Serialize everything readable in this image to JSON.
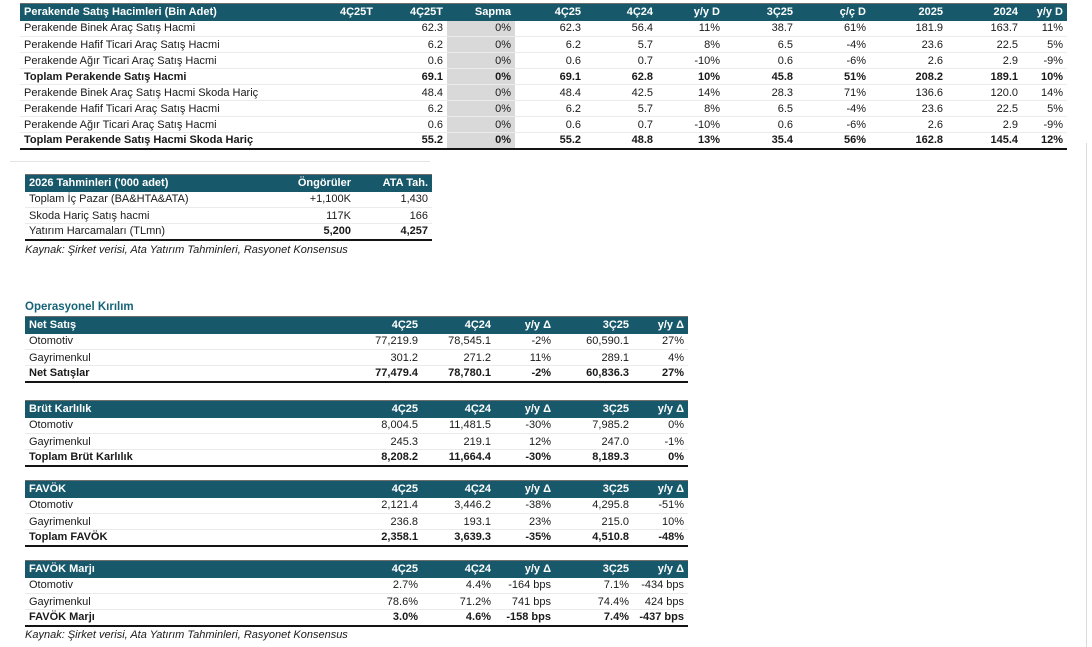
{
  "colors": {
    "header_bar": "#17596B",
    "header_text": "#FFFFFF",
    "sapma_shade": "#D9D9D9",
    "section_heading_text": "#176479",
    "total_border": "#141414"
  },
  "retail_table": {
    "title": "Perakende Satış Hacimleri (Bin Adet)",
    "columns": [
      "4Ç25T",
      "4Ç25T",
      "Sapma",
      "4Ç25",
      "4Ç24",
      "y/y D",
      "3Ç25",
      "ç/ç D",
      "2025",
      "2024",
      "y/y D"
    ],
    "rows": [
      {
        "label": "Perakende Binek Araç Satış Hacmi",
        "bold": false,
        "values": [
          "",
          "62.3",
          "0%",
          "62.3",
          "56.4",
          "11%",
          "38.7",
          "61%",
          "181.9",
          "163.7",
          "11%"
        ]
      },
      {
        "label": "Perakende Hafif Ticari Araç Satış Hacmi",
        "bold": false,
        "values": [
          "",
          "6.2",
          "0%",
          "6.2",
          "5.7",
          "8%",
          "6.5",
          "-4%",
          "23.6",
          "22.5",
          "5%"
        ]
      },
      {
        "label": "Perakende Ağır Ticari Araç Satış Hacmi",
        "bold": false,
        "values": [
          "",
          "0.6",
          "0%",
          "0.6",
          "0.7",
          "-10%",
          "0.6",
          "-6%",
          "2.6",
          "2.9",
          "-9%"
        ]
      },
      {
        "label": "Toplam Perakende Satış Hacmi",
        "bold": true,
        "values": [
          "",
          "69.1",
          "0%",
          "69.1",
          "62.8",
          "10%",
          "45.8",
          "51%",
          "208.2",
          "189.1",
          "10%"
        ]
      },
      {
        "label": "Perakende Binek Araç Satış Hacmi Skoda Hariç",
        "bold": false,
        "values": [
          "",
          "48.4",
          "0%",
          "48.4",
          "42.5",
          "14%",
          "28.3",
          "71%",
          "136.6",
          "120.0",
          "14%"
        ]
      },
      {
        "label": "Perakende Hafif Ticari Araç Satış Hacmi",
        "bold": false,
        "values": [
          "",
          "6.2",
          "0%",
          "6.2",
          "5.7",
          "8%",
          "6.5",
          "-4%",
          "23.6",
          "22.5",
          "5%"
        ]
      },
      {
        "label": "Perakende Ağır Ticari Araç Satış Hacmi",
        "bold": false,
        "values": [
          "",
          "0.6",
          "0%",
          "0.6",
          "0.7",
          "-10%",
          "0.6",
          "-6%",
          "2.6",
          "2.9",
          "-9%"
        ]
      },
      {
        "label": "Toplam Perakende Satış Hacmi Skoda Hariç",
        "bold": true,
        "values": [
          "",
          "55.2",
          "0%",
          "55.2",
          "48.8",
          "13%",
          "35.4",
          "56%",
          "162.8",
          "145.4",
          "12%"
        ]
      }
    ]
  },
  "forecast_table": {
    "title": "2026 Tahminleri ('000 adet)",
    "columns": [
      "Öngörüler",
      "ATA Tah."
    ],
    "rows": [
      {
        "label": "Toplam İç Pazar (BA&HTA&ATA)",
        "bold": false,
        "values": [
          "+1,100K",
          "1,430"
        ]
      },
      {
        "label": "Skoda Hariç Satış hacmi",
        "bold": false,
        "values": [
          "117K",
          "166"
        ]
      },
      {
        "label": "Yatırım Harcamaları (TLmn)",
        "bold": false,
        "bold_values": true,
        "values": [
          "5,200",
          "4,257"
        ]
      }
    ],
    "source": "Kaynak: Şirket verisi, Ata Yatırım Tahminleri, Rasyonet Konsensus"
  },
  "operational": {
    "heading": "Operasyonel Kırılım",
    "columns": [
      "4Ç25",
      "4Ç24",
      "y/y Δ",
      "3Ç25",
      "y/y Δ"
    ],
    "tables": [
      {
        "title": "Net Satış",
        "rows": [
          {
            "label": "Otomotiv",
            "bold": false,
            "values": [
              "77,219.9",
              "78,545.1",
              "-2%",
              "60,590.1",
              "27%"
            ]
          },
          {
            "label": "Gayrimenkul",
            "bold": false,
            "values": [
              "301.2",
              "271.2",
              "11%",
              "289.1",
              "4%"
            ]
          },
          {
            "label": "Net Satışlar",
            "bold": true,
            "values": [
              "77,479.4",
              "78,780.1",
              "-2%",
              "60,836.3",
              "27%"
            ]
          }
        ]
      },
      {
        "title": "Brüt Karlılık",
        "rows": [
          {
            "label": "Otomotiv",
            "bold": false,
            "values": [
              "8,004.5",
              "11,481.5",
              "-30%",
              "7,985.2",
              "0%"
            ]
          },
          {
            "label": "Gayrimenkul",
            "bold": false,
            "values": [
              "245.3",
              "219.1",
              "12%",
              "247.0",
              "-1%"
            ]
          },
          {
            "label": "Toplam Brüt Karlılık",
            "bold": true,
            "values": [
              "8,208.2",
              "11,664.4",
              "-30%",
              "8,189.3",
              "0%"
            ]
          }
        ]
      },
      {
        "title": "FAVÖK",
        "rows": [
          {
            "label": "Otomotiv",
            "bold": false,
            "values": [
              "2,121.4",
              "3,446.2",
              "-38%",
              "4,295.8",
              "-51%"
            ]
          },
          {
            "label": "Gayrimenkul",
            "bold": false,
            "values": [
              "236.8",
              "193.1",
              "23%",
              "215.0",
              "10%"
            ]
          },
          {
            "label": "Toplam FAVÖK",
            "bold": true,
            "values": [
              "2,358.1",
              "3,639.3",
              "-35%",
              "4,510.8",
              "-48%"
            ]
          }
        ]
      },
      {
        "title": "FAVÖK Marjı",
        "rows": [
          {
            "label": "Otomotiv",
            "bold": false,
            "values": [
              "2.7%",
              "4.4%",
              "-164 bps",
              "7.1%",
              "-434 bps"
            ]
          },
          {
            "label": "Gayrimenkul",
            "bold": false,
            "values": [
              "78.6%",
              "71.2%",
              "741 bps",
              "74.4%",
              "424 bps"
            ]
          },
          {
            "label": "FAVÖK Marjı",
            "bold": true,
            "values": [
              "3.0%",
              "4.6%",
              "-158 bps",
              "7.4%",
              "-437 bps"
            ]
          }
        ]
      }
    ],
    "source": "Kaynak: Şirket verisi, Ata Yatırım Tahminleri, Rasyonet Konsensus"
  }
}
